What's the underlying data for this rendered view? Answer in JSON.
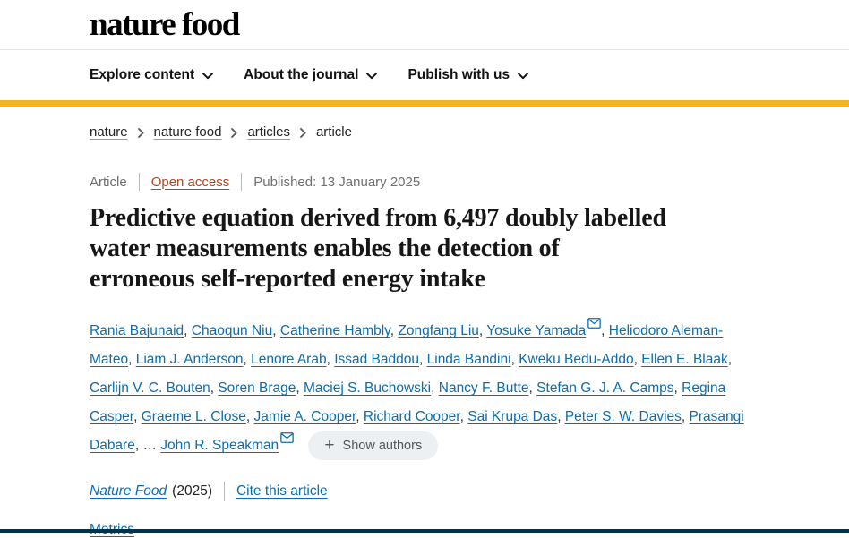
{
  "header": {
    "logo": "nature food",
    "nav": [
      {
        "label": "Explore content"
      },
      {
        "label": "About the journal"
      },
      {
        "label": "Publish with us"
      }
    ]
  },
  "breadcrumb": {
    "items": [
      {
        "label": "nature",
        "link": true
      },
      {
        "label": "nature food",
        "link": true
      },
      {
        "label": "articles",
        "link": true
      },
      {
        "label": "article",
        "link": false
      }
    ]
  },
  "meta": {
    "type": "Article",
    "access": "Open access",
    "published": "Published: 13 January 2025"
  },
  "title": {
    "full": "Predictive equation derived from 6,497 doubly labelled water measurements enables the detection of erroneous self-reported energy intake",
    "lines": [
      "Predictive equation derived from 6,497 doubly labelled",
      "water measurements enables the detection of",
      "erroneous self-reported energy intake"
    ]
  },
  "authors": {
    "list": [
      {
        "name": "Rania Bajunaid"
      },
      {
        "name": "Chaoqun Niu"
      },
      {
        "name": "Catherine Hambly"
      },
      {
        "name": "Zongfang Liu"
      },
      {
        "name": "Yosuke Yamada",
        "mail": true
      },
      {
        "name": "Heliodoro Aleman-Mateo"
      },
      {
        "name": "Liam J. Anderson"
      },
      {
        "name": "Lenore Arab"
      },
      {
        "name": "Issad Baddou"
      },
      {
        "name": "Linda Bandini"
      },
      {
        "name": "Kweku Bedu-Addo"
      },
      {
        "name": "Ellen E. Blaak"
      },
      {
        "name": "Carlijn V. C. Bouten"
      },
      {
        "name": "Soren Brage"
      },
      {
        "name": "Maciej S. Buchowski"
      },
      {
        "name": "Nancy F. Butte"
      },
      {
        "name": "Stefan G. J. A. Camps"
      },
      {
        "name": "Regina Casper"
      },
      {
        "name": "Graeme L. Close"
      },
      {
        "name": "Jamie A. Cooper"
      },
      {
        "name": "Richard Cooper"
      },
      {
        "name": "Sai Krupa Das"
      },
      {
        "name": "Peter S. W. Davies"
      },
      {
        "name": "Prasangi Dabare"
      },
      {
        "name": "John R. Speakman",
        "mail": true,
        "ellipsis_before": true
      }
    ],
    "separator": ", ",
    "ellipsis": "…",
    "plus_glyph": "+",
    "show_authors": "Show authors"
  },
  "citation": {
    "journal": "Nature Food",
    "year": "(2025)",
    "cite_link": "Cite this article"
  },
  "links": {
    "metrics": "Metrics"
  },
  "icons": {
    "nav_chevron": "chevron-down",
    "breadcrumb_separator": "chevron-right",
    "author_mail": "envelope",
    "show_authors_plus": "plus"
  },
  "colors": {
    "accent_bar": "#f4b320",
    "link_blue": "#0b6dad",
    "open_access": "#b3461d",
    "dark_navy": "#01324b",
    "text_gray": "#6f6f6f"
  }
}
